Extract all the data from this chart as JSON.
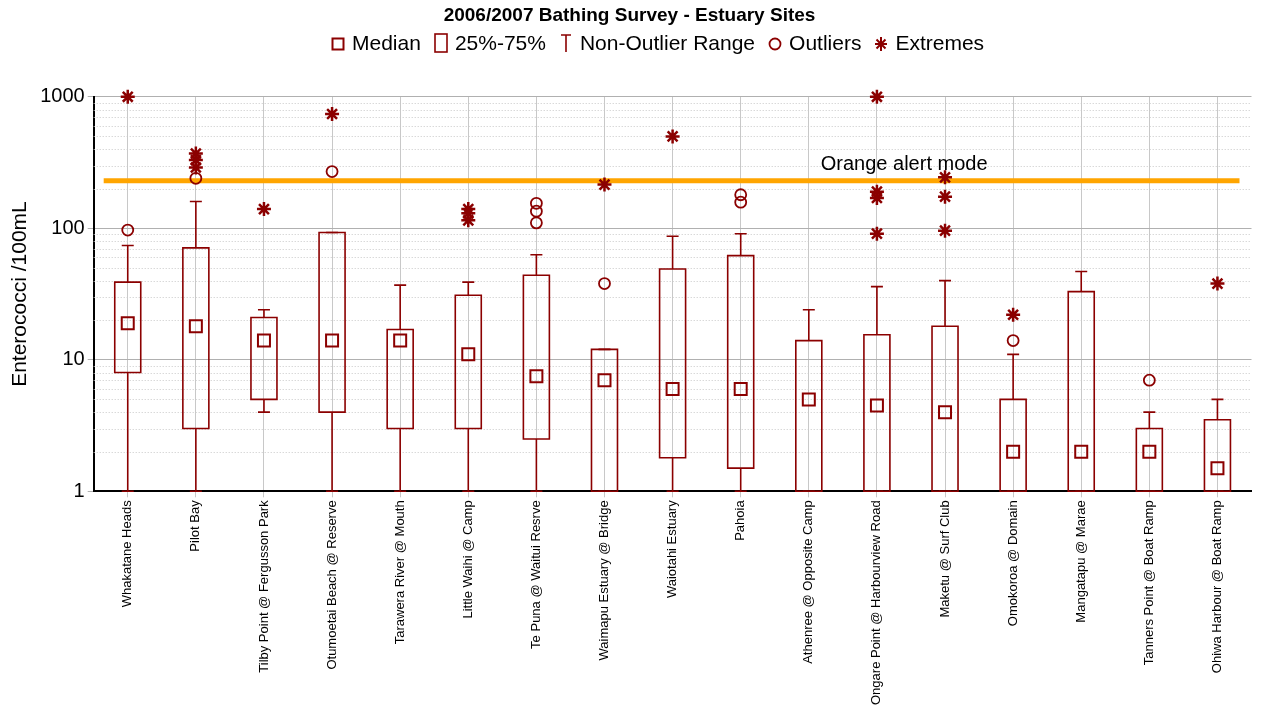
{
  "chart_data": {
    "type": "box",
    "title": "2006/2007 Bathing Survey - Estuary Sites",
    "ylabel": "Enterococci /100mL",
    "categories": [
      "Whakatane Heads",
      "Pilot Bay",
      "Tilby Point @ Fergusson Park",
      "Otumoetai Beach @ Reserve",
      "Tarawera River @ Mouth",
      "Little Waihi @ Camp",
      "Te Puna @ Waitui Resrve",
      "Waimapu Estuary @ Bridge",
      "Waiotahi Estuary",
      "Pahoia",
      "Athenree @ Opposite Camp",
      "Ongare Point @ Harbourview Road",
      "Maketu @ Surf Club",
      "Omokoroa @ Domain",
      "Mangatapu @ Marae",
      "Tanners Point @ Boat Ramp",
      "Ohiwa Harbour @ Boat Ramp"
    ],
    "series": [
      {
        "type": "box",
        "color": "#8b0000",
        "boxes": [
          {
            "low": 1,
            "q1": 8,
            "median": 19,
            "q3": 39,
            "high": 74,
            "outliers": [
              97
            ]
          },
          {
            "low": 1,
            "q1": 3,
            "median": 18,
            "q3": 71,
            "high": 160,
            "outliers": [
              240
            ]
          },
          {
            "low": 4,
            "q1": 5,
            "median": 14,
            "q3": 21,
            "high": 24
          },
          {
            "low": 1,
            "q1": 4,
            "median": 14,
            "q3": 93,
            "high": 93,
            "outliers": [
              270
            ]
          },
          {
            "low": 1,
            "q1": 3,
            "median": 14,
            "q3": 17,
            "high": 37
          },
          {
            "low": 1,
            "q1": 3,
            "median": 11,
            "q3": 31,
            "high": 39
          },
          {
            "low": 1,
            "q1": 2.5,
            "median": 7.5,
            "q3": 44,
            "high": 63,
            "outliers": [
              155,
              135,
              110
            ]
          },
          {
            "low": 1,
            "q1": 1,
            "median": 7,
            "q3": 12,
            "high": 12,
            "outliers": [
              38
            ]
          },
          {
            "low": 1,
            "q1": 1.8,
            "median": 6,
            "q3": 49,
            "high": 87
          },
          {
            "low": 1,
            "q1": 1.5,
            "median": 6,
            "q3": 62,
            "high": 91,
            "outliers": [
              180,
              158
            ]
          },
          {
            "low": 1,
            "q1": 1,
            "median": 5,
            "q3": 14,
            "high": 24
          },
          {
            "low": 1,
            "q1": 1,
            "median": 4.5,
            "q3": 15.5,
            "high": 36
          },
          {
            "low": 1,
            "q1": 1,
            "median": 4,
            "q3": 18,
            "high": 40
          },
          {
            "low": 1,
            "q1": 1,
            "median": 2,
            "q3": 5,
            "high": 11,
            "outliers": [
              14
            ]
          },
          {
            "low": 1,
            "q1": 1,
            "median": 2,
            "q3": 33,
            "high": 47
          },
          {
            "low": 1,
            "q1": 1,
            "median": 2,
            "q3": 3,
            "high": 4,
            "outliers": [
              7
            ]
          },
          {
            "low": 1,
            "q1": 1,
            "median": 1.5,
            "q3": 3.5,
            "high": 5
          }
        ]
      },
      {
        "type": "scatter",
        "name": "Extremes",
        "color": "#8b0000",
        "marker": "cross",
        "x": [
          "Whakatane Heads",
          "Pilot Bay",
          "Pilot Bay",
          "Pilot Bay",
          "Tilby Point @ Fergusson Park",
          "Otumoetai Beach @ Reserve",
          "Little Waihi @ Camp",
          "Little Waihi @ Camp",
          "Little Waihi @ Camp",
          "Waimapu Estuary @ Bridge",
          "Waiotahi Estuary",
          "Ongare Point @ Harbourview Road",
          "Ongare Point @ Harbourview Road",
          "Ongare Point @ Harbourview Road",
          "Ongare Point @ Harbourview Road",
          "Maketu @ Surf Club",
          "Maketu @ Surf Club",
          "Maketu @ Surf Club",
          "Omokoroa @ Domain",
          "Ohiwa Harbour @ Boat Ramp"
        ],
        "values": [
          1000,
          370,
          330,
          290,
          140,
          740,
          140,
          130,
          115,
          215,
          500,
          1000,
          190,
          170,
          91,
          244,
          174,
          96,
          22,
          38
        ]
      }
    ],
    "annotations": [
      "Median",
      "25%-75%",
      "Non-Outlier Range",
      "Outliers"
    ],
    "ref_lines": [
      {
        "axis": "y",
        "value": 230,
        "label": "Orange alert mode",
        "color": "#ffa500"
      }
    ],
    "log": "y",
    "ylim": [
      1,
      1000
    ],
    "yticks": [
      1,
      10,
      100,
      1000
    ],
    "grid": true,
    "legend": "top"
  }
}
